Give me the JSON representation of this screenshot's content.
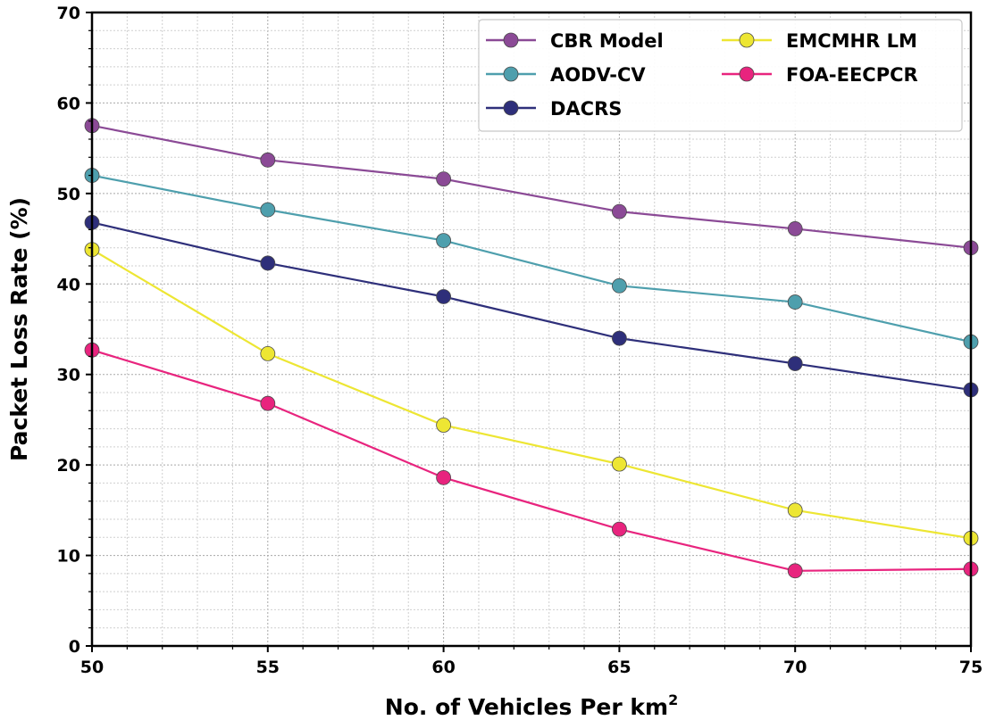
{
  "chart_data": {
    "type": "line",
    "title": "",
    "xlabel": "No. of Vehicles Per km",
    "xlabel_superscript": "2",
    "ylabel": "Packet Loss Rate (%)",
    "x": [
      50,
      55,
      60,
      65,
      70,
      75
    ],
    "xlim": [
      50,
      75
    ],
    "ylim": [
      0,
      70
    ],
    "xticks": [
      "50",
      "55",
      "60",
      "65",
      "70",
      "75"
    ],
    "yticks": [
      "0",
      "10",
      "20",
      "30",
      "40",
      "50",
      "60",
      "70"
    ],
    "grid": true,
    "legend_position": "top-right",
    "series": [
      {
        "name": "CBR Model",
        "color": "#8B4A96",
        "values": [
          57.5,
          53.7,
          51.6,
          48.0,
          46.1,
          44.0
        ]
      },
      {
        "name": "AODV-CV",
        "color": "#4E9FAD",
        "values": [
          52.0,
          48.2,
          44.8,
          39.8,
          38.0,
          33.6
        ]
      },
      {
        "name": "DACRS",
        "color": "#2E2F7A",
        "values": [
          46.8,
          42.3,
          38.6,
          34.0,
          31.2,
          28.3
        ]
      },
      {
        "name": "EMCMHR LM",
        "color": "#EDE633",
        "values": [
          43.8,
          32.3,
          24.4,
          20.1,
          15.0,
          11.9
        ]
      },
      {
        "name": "FOA-EECPCR",
        "color": "#E8247E",
        "values": [
          32.7,
          26.8,
          18.6,
          12.9,
          8.3,
          8.5
        ]
      }
    ]
  }
}
